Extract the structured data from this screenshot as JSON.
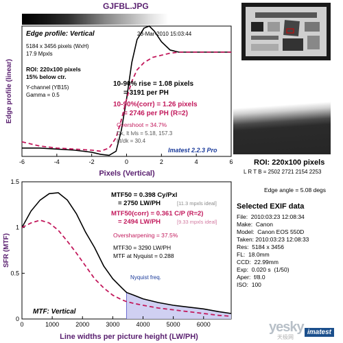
{
  "filename": "GJFBL.JPG",
  "edge_panel": {
    "title": "Edge profile: Vertical",
    "date": "23-Mar-2010 15:03:44",
    "info1": "5184 x 3456 pixels (WxH)",
    "info2": "17.9 Mpxls",
    "roi_line1": "ROI: 220x100 pixels",
    "roi_line2": "15% below ctr.",
    "channel": "Y-channel (YB15)",
    "gamma": "Gamma = 0.5",
    "rise1": "10-90% rise = 1.08 pixels",
    "rise2": "= 3191 per PH",
    "corr1": "10-90%(corr) = 1.26 pixels",
    "corr2": "= 2746 per PH  (R=2)",
    "overshoot": "Overshoot = 34.7%",
    "dk": "Dk, lt lvls = 5.18, 157.3",
    "ltdk": "Lt/dk = 30.4",
    "version": "Imatest 2.2.3 Pro"
  },
  "mtf_panel": {
    "mtf50_1": "MTF50 = 0.398 Cy/Pxl",
    "mtf50_2": "= 2750 LW/PH",
    "ideal1": "[11.3 mpxls ideal]",
    "mtf50c_1": "MTF50(corr) = 0.361 C/P  (R=2)",
    "mtf50c_2": "= 2494 LW/PH",
    "ideal2": "[9.33 mpxls ideal]",
    "oversharp": "Oversharpening = 37.5%",
    "mtf30": "MTF30 = 3290 LW/PH",
    "nyq_mtf": "MTF at Nyquist = 0.288",
    "nyq_label": "Nyquist freq.",
    "title": "MTF: Vertical"
  },
  "roi": {
    "title": "ROI: 220x100 pixels",
    "coords": "L R T B = 2502 2721   2154 2253",
    "edge_angle": "Edge angle = 5.08 degs"
  },
  "exif": {
    "title": "Selected EXIF data",
    "rows": [
      "File:  2010:03:23 12:08:34",
      "Make:  Canon",
      "Model:  Canon EOS 550D",
      "Taken: 2010:03:23 12:08:33",
      "Res:  5184 x 3456",
      "FL:  18.0mm",
      "CCD:  22.99mm",
      "Exp:  0.020 s  (1/50)",
      "Aper:  f/8.0",
      "ISO:  100"
    ]
  },
  "watermark": {
    "text": "yesky",
    "sub": "天极网",
    "brand": "imatest"
  },
  "colors": {
    "black": "#000000",
    "corrected": "#c2185b",
    "nyquist_fill": "#c8c8f0",
    "title_purple": "#5a2070"
  },
  "chart_data": [
    {
      "type": "line",
      "title": "Edge profile: Vertical",
      "xlabel": "Pixels (Vertical)",
      "ylabel": "Edge profile (linear)",
      "xlim": [
        -6,
        6
      ],
      "ylim": [
        0,
        1.25
      ],
      "xticks": [
        "-6",
        "-4",
        "-2",
        "0",
        "2",
        "4",
        "6"
      ],
      "series": [
        {
          "name": "",
          "x": [
            -6,
            -5,
            -4,
            -3,
            -2,
            -1.5,
            -1,
            -0.6,
            -0.3,
            0,
            0.3,
            0.6,
            1,
            1.3,
            1.6,
            2,
            2.5,
            3,
            3.5,
            4,
            5,
            6
          ],
          "values": [
            0.08,
            0.08,
            0.07,
            0.06,
            0.04,
            0.02,
            0.01,
            0.05,
            0.25,
            0.55,
            0.9,
            1.12,
            1.23,
            1.25,
            1.2,
            1.1,
            1.02,
            1.0,
            1.0,
            1.0,
            1.0,
            1.0
          ]
        },
        {
          "name": "",
          "x": [
            -6,
            -5,
            -4,
            -3,
            -2,
            -1.5,
            -1,
            -0.6,
            -0.3,
            0,
            0.3,
            0.6,
            1,
            1.5,
            2,
            2.5,
            3,
            3.5,
            4,
            5,
            6
          ],
          "values": [
            0.14,
            0.1,
            0.08,
            0.07,
            0.06,
            0.05,
            0.08,
            0.18,
            0.35,
            0.55,
            0.72,
            0.83,
            0.9,
            0.95,
            0.97,
            0.99,
            1.0,
            1.0,
            1.0,
            1.0,
            1.0
          ]
        }
      ]
    },
    {
      "type": "line",
      "title": "MTF: Vertical",
      "xlabel": "Line widths per picture height (LW/PH)",
      "ylabel": "SFR (MTF)",
      "xlim": [
        0,
        6912
      ],
      "ylim": [
        0,
        1.5
      ],
      "xticks": [
        "0",
        "1000",
        "2000",
        "3000",
        "4000",
        "5000",
        "6000"
      ],
      "yticks": [
        "0",
        "0.5",
        "1",
        "1.5"
      ],
      "nyquist": 3456,
      "series": [
        {
          "name": "",
          "x": [
            0,
            300,
            600,
            900,
            1200,
            1500,
            1800,
            2100,
            2400,
            2700,
            3000,
            3300,
            3456,
            3700,
            4000,
            4500,
            5000,
            5500,
            6000,
            6500,
            6912
          ],
          "values": [
            1.0,
            1.18,
            1.3,
            1.37,
            1.38,
            1.3,
            1.15,
            0.95,
            0.78,
            0.58,
            0.44,
            0.34,
            0.29,
            0.26,
            0.22,
            0.18,
            0.15,
            0.13,
            0.11,
            0.08,
            0.06
          ]
        },
        {
          "name": "",
          "x": [
            0,
            300,
            600,
            900,
            1200,
            1500,
            1800,
            2100,
            2400,
            2700,
            3000,
            3300,
            3456,
            3700,
            4000,
            4500,
            5000,
            5500,
            6000,
            6500,
            6912
          ],
          "values": [
            1.0,
            1.05,
            1.08,
            1.05,
            0.97,
            0.85,
            0.72,
            0.58,
            0.44,
            0.34,
            0.26,
            0.21,
            0.19,
            0.17,
            0.15,
            0.12,
            0.1,
            0.08,
            0.06,
            0.04,
            0.03
          ]
        }
      ]
    }
  ]
}
